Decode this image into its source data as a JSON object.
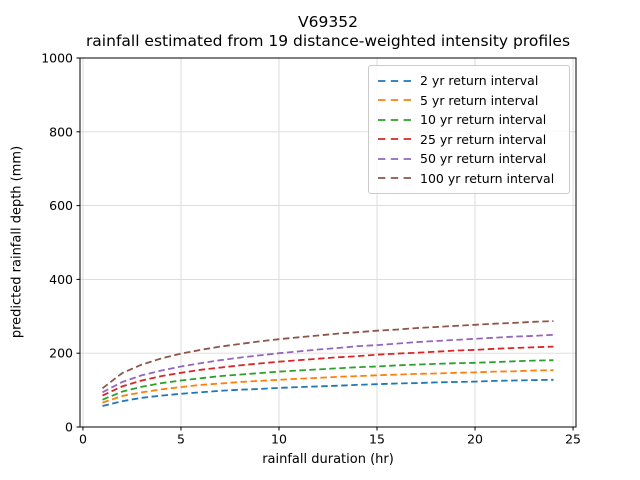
{
  "chart_data": {
    "type": "line",
    "title_line1": "V69352",
    "title_line2": "rainfall estimated from 19 distance-weighted intensity profiles",
    "title": "V69352\nrainfall estimated from 19 distance-weighted intensity profiles",
    "xlabel": "rainfall duration (hr)",
    "ylabel": "predicted rainfall depth (mm)",
    "xlim": [
      -0.15,
      25.15
    ],
    "ylim": [
      0,
      1000
    ],
    "xticks": [
      0,
      5,
      10,
      15,
      20,
      25
    ],
    "yticks": [
      0,
      200,
      400,
      600,
      800,
      1000
    ],
    "grid": true,
    "grid_color": "#d9d9d9",
    "line_style": "dashed",
    "legend_position": "upper right",
    "x": [
      1,
      2,
      3,
      4,
      5,
      6,
      7,
      8,
      9,
      10,
      11,
      12,
      13,
      14,
      15,
      16,
      17,
      18,
      19,
      20,
      21,
      22,
      23,
      24
    ],
    "series": [
      {
        "name": "2 yr return interval",
        "color": "#1f77b4",
        "values": [
          57,
          70,
          79,
          85,
          90,
          94,
          98,
          101,
          103,
          106,
          108,
          110,
          112,
          114,
          116,
          118,
          119,
          121,
          122,
          123,
          125,
          126,
          127,
          128
        ]
      },
      {
        "name": "5 yr return interval",
        "color": "#ff7f0e",
        "values": [
          66,
          84,
          94,
          102,
          108,
          114,
          118,
          122,
          125,
          128,
          131,
          133,
          136,
          138,
          140,
          142,
          144,
          145,
          147,
          148,
          150,
          151,
          153,
          154
        ]
      },
      {
        "name": "10 yr return interval",
        "color": "#2ca02c",
        "values": [
          74,
          96,
          109,
          119,
          126,
          132,
          138,
          142,
          146,
          150,
          153,
          156,
          159,
          162,
          164,
          167,
          169,
          171,
          173,
          174,
          176,
          178,
          180,
          181
        ]
      },
      {
        "name": "25 yr return interval",
        "color": "#d62728",
        "values": [
          85,
          110,
          126,
          138,
          147,
          155,
          161,
          167,
          172,
          177,
          181,
          185,
          189,
          192,
          196,
          199,
          201,
          204,
          207,
          209,
          212,
          214,
          216,
          218
        ]
      },
      {
        "name": "50 yr return interval",
        "color": "#9467bd",
        "values": [
          94,
          122,
          140,
          153,
          164,
          173,
          181,
          188,
          194,
          200,
          205,
          210,
          214,
          219,
          222,
          226,
          230,
          233,
          236,
          239,
          242,
          245,
          247,
          250
        ]
      },
      {
        "name": "100 yr return interval",
        "color": "#8c564b",
        "values": [
          105,
          146,
          169,
          186,
          199,
          209,
          218,
          225,
          232,
          238,
          243,
          248,
          253,
          257,
          261,
          264,
          268,
          271,
          274,
          277,
          280,
          282,
          285,
          287
        ]
      }
    ]
  }
}
